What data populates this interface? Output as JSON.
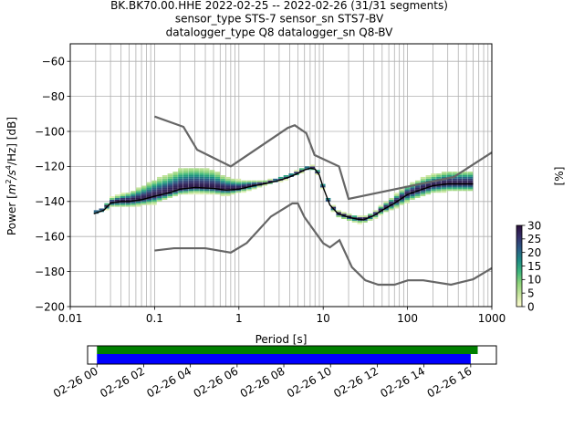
{
  "title": {
    "line1": "BK.BK70.00.HHE   2022-02-25 -- 2022-02-26  (31/31 segments)",
    "line2": "sensor_type STS-7 sensor_sn STS7-BV",
    "line3": "datalogger_type Q8 datalogger_sn Q8-BV"
  },
  "colors": {
    "model_line": "#666666",
    "mode_line": "#000000",
    "grid": "#b0b0b0",
    "timeline_green": "#008000",
    "timeline_blue": "#0000ff"
  },
  "chart_data": [
    {
      "type": "heatmap",
      "subtype": "probabilistic power spectral density",
      "xlabel": "Period [s]",
      "ylabel": "Power [m²/s⁴/Hz] [dB]",
      "ylabel_parts": {
        "prefix": "Power [",
        "m": "m",
        "exp2": "2",
        "mid": "/s",
        "exp4": "4",
        "suffix": "/Hz] [dB]"
      },
      "xscale": "log",
      "xlim": [
        0.01,
        1000
      ],
      "ylim": [
        -200,
        -50
      ],
      "x_ticks": [
        0.01,
        0.1,
        1,
        10,
        100,
        1000
      ],
      "x_tick_labels": [
        "0.01",
        "0.1",
        "1",
        "10",
        "100",
        "1000"
      ],
      "y_ticks": [
        -200,
        -180,
        -160,
        -140,
        -120,
        -100,
        -80,
        -60
      ],
      "y_tick_labels": [
        "−200",
        "−180",
        "−160",
        "−140",
        "−120",
        "−100",
        "−80",
        "−60"
      ],
      "grid": true,
      "colorbar": {
        "label": "[%]",
        "range": [
          0,
          30
        ],
        "ticks": [
          0,
          5,
          10,
          15,
          20,
          25,
          30
        ],
        "tick_labels": [
          "0",
          "5",
          "10",
          "15",
          "20",
          "25",
          "30"
        ],
        "colormap": [
          "#fffdd0",
          "#c9e5a0",
          "#8fd47a",
          "#3db57d",
          "#1e8a84",
          "#2b5b85",
          "#35306a",
          "#2b0f3b"
        ]
      },
      "mode_curve": {
        "name": "mode",
        "x": [
          0.019,
          0.025,
          0.03,
          0.04,
          0.05,
          0.07,
          0.1,
          0.15,
          0.2,
          0.3,
          0.5,
          0.7,
          1.0,
          1.5,
          2.0,
          3.0,
          4.0,
          5.0,
          6.0,
          7.0,
          8.0,
          9.0,
          10.0,
          12.0,
          15.0,
          20.0,
          25.0,
          30.0,
          40.0,
          50.0,
          70.0,
          100.0,
          150.0,
          200.0,
          300.0,
          400.0,
          500.0,
          600.0
        ],
        "y": [
          -147,
          -145,
          -141,
          -140,
          -140,
          -139,
          -137,
          -135,
          -133,
          -132,
          -132.5,
          -133.5,
          -133,
          -131,
          -130,
          -128,
          -126,
          -124,
          -122,
          -121,
          -121.5,
          -125,
          -132,
          -142,
          -147,
          -149,
          -150,
          -150.5,
          -148,
          -145,
          -141,
          -136,
          -133,
          -131,
          -130,
          -130,
          -130,
          -130
        ]
      },
      "density": {
        "x": [
          0.019,
          0.025,
          0.03,
          0.04,
          0.05,
          0.07,
          0.1,
          0.15,
          0.2,
          0.3,
          0.5,
          0.7,
          1.0,
          1.5,
          2.0,
          3.0,
          4.0,
          5.0,
          6.0,
          7.0,
          8.0,
          9.0,
          10.0,
          12.0,
          15.0,
          20.0,
          25.0,
          30.0,
          40.0,
          50.0,
          70.0,
          100.0,
          150.0,
          200.0,
          300.0,
          400.0,
          500.0,
          600.0
        ],
        "spread_above": [
          1,
          1,
          2,
          3,
          4,
          6,
          8,
          9,
          10,
          10,
          9,
          6,
          4,
          2,
          1,
          1,
          1,
          1,
          1,
          1,
          1,
          1,
          1,
          1,
          1,
          1,
          1,
          1,
          1,
          2,
          3,
          4,
          5,
          5,
          6,
          6,
          6,
          6
        ],
        "spread_below": [
          1,
          1,
          2,
          3,
          3,
          3,
          4,
          3,
          3,
          3,
          3,
          3,
          2,
          2,
          1,
          1,
          1,
          1,
          1,
          1,
          1,
          1,
          1,
          1,
          2,
          2,
          2,
          2,
          2,
          2,
          3,
          4,
          4,
          4,
          4,
          4,
          4,
          4
        ]
      },
      "new_high_noise_model": {
        "x": [
          0.1,
          0.22,
          0.32,
          0.8,
          3.8,
          4.6,
          6.3,
          7.9,
          15.4,
          20.0,
          354.8,
          1000
        ],
        "y": [
          -91.5,
          -97.4,
          -110.5,
          -120.0,
          -98.0,
          -96.5,
          -101.0,
          -113.5,
          -120.0,
          -138.5,
          -126.0,
          -112.0
        ]
      },
      "new_low_noise_model": {
        "x": [
          0.1,
          0.17,
          0.4,
          0.8,
          1.24,
          2.4,
          4.3,
          5.0,
          6.0,
          10.0,
          12.0,
          15.6,
          21.9,
          31.6,
          45.0,
          70.0,
          101.0,
          154.0,
          328.0,
          600.0,
          1000
        ],
        "y": [
          -168.0,
          -166.7,
          -166.7,
          -169.2,
          -163.7,
          -148.6,
          -141.1,
          -141.1,
          -149.0,
          -163.8,
          -166.2,
          -162.1,
          -177.5,
          -185.0,
          -187.5,
          -187.5,
          -185.0,
          -185.0,
          -187.5,
          -184.4,
          -178.0
        ]
      }
    },
    {
      "type": "bar",
      "subtype": "data availability timeline",
      "x_tick_labels": [
        "02-26 00",
        "02-26 02",
        "02-26 04",
        "02-26 06",
        "02-26 08",
        "02-26 10",
        "02-26 12",
        "02-26 14",
        "02-26 16"
      ],
      "xlim_hours": [
        -0.4,
        17.1
      ],
      "series": [
        {
          "start_hour": 0.0,
          "end_hour": 16.3
        },
        {
          "start_hour": 0.0,
          "end_hour": 16.0
        }
      ]
    }
  ]
}
